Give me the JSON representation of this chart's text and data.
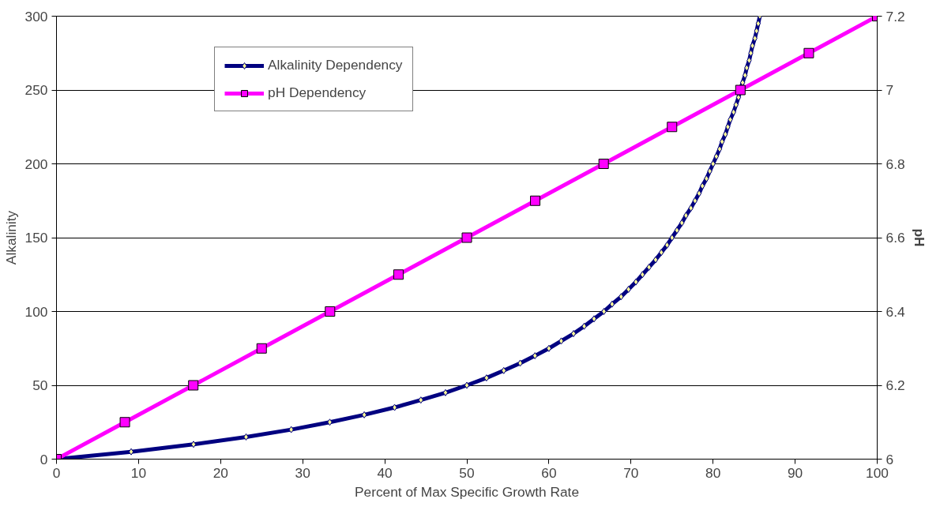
{
  "chart_data": {
    "type": "line",
    "xlabel": "Percent of Max Specific Growth Rate",
    "ylabel": "Alkalinity",
    "y2label": "pH",
    "xlim": [
      0,
      100
    ],
    "xticks": [
      0,
      10,
      20,
      30,
      40,
      50,
      60,
      70,
      80,
      90,
      100
    ],
    "ylim": [
      0,
      300
    ],
    "yticks": [
      0,
      50,
      100,
      150,
      200,
      250,
      300
    ],
    "y2lim": [
      6,
      7.2
    ],
    "y2ticks": [
      6,
      6.2,
      6.4,
      6.6,
      6.8,
      7,
      7.2
    ],
    "grid": "y",
    "legend": "top left",
    "series": [
      {
        "name": "Alkalinity Dependency",
        "color": "#000080",
        "marker": "diamond",
        "axis": "y",
        "x": [
          0,
          9.1,
          16.7,
          23.1,
          28.6,
          33.3,
          37.5,
          41.2,
          44.4,
          47.4,
          50,
          52.4,
          54.5,
          56.5,
          58.3,
          60,
          61.5,
          63,
          64.3,
          65.5,
          66.7,
          67.7,
          68.8,
          69.7,
          70.6,
          71.4,
          72.2,
          73,
          73.7,
          74.4,
          75,
          75.6,
          76.2,
          76.7,
          77.3,
          77.8,
          78.3,
          78.7,
          79.2,
          79.6,
          80,
          80.4,
          80.8,
          81.1,
          81.5,
          81.8,
          82.1,
          82.5,
          82.8,
          83.1,
          83.3,
          83.6,
          83.9,
          84.1,
          84.4,
          84.6,
          84.8,
          85.1,
          85.3,
          85.5,
          85.7
        ],
        "values": [
          0,
          5,
          10,
          15,
          20,
          25,
          30,
          35,
          40,
          45,
          50,
          55,
          60,
          65,
          70,
          75,
          80,
          85,
          90,
          95,
          100,
          105,
          110,
          115,
          120,
          125,
          130,
          135,
          140,
          145,
          150,
          155,
          160,
          165,
          170,
          175,
          180,
          185,
          190,
          195,
          200,
          205,
          210,
          215,
          220,
          225,
          230,
          235,
          240,
          245,
          250,
          255,
          260,
          265,
          270,
          275,
          280,
          285,
          290,
          295,
          300
        ]
      },
      {
        "name": "pH Dependency",
        "color": "#ff00ff",
        "marker": "square",
        "axis": "y2",
        "x": [
          0,
          8.33,
          16.67,
          25,
          33.33,
          41.67,
          50,
          58.33,
          66.67,
          75,
          83.33,
          91.67,
          100
        ],
        "values": [
          6,
          6.1,
          6.2,
          6.3,
          6.4,
          6.5,
          6.6,
          6.7,
          6.8,
          6.9,
          7,
          7.1,
          7.2
        ]
      }
    ]
  }
}
